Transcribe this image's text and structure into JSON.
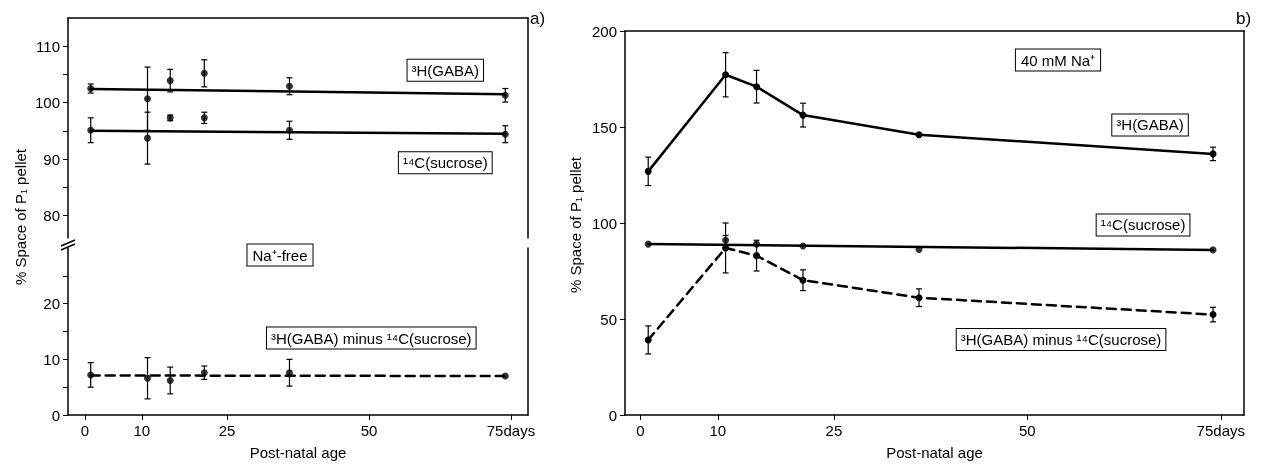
{
  "chart_data": [
    {
      "type": "scatter",
      "title": "a)",
      "ylabel": "% Space of P₁ pellet",
      "xlim": [
        -3,
        78
      ],
      "ylim": [
        76,
        115
      ],
      "yticks": [
        {
          "value": 80,
          "label": "80"
        },
        {
          "value": 85,
          "label": null
        },
        90,
        {
          "value": 95,
          "label": null
        },
        100,
        {
          "value": 105,
          "label": null
        },
        110
      ],
      "tick_labels": "y",
      "series": [
        {
          "x": [
            1,
            11,
            15,
            21,
            36,
            74
          ],
          "values": [
            102.5,
            100.7,
            103.9,
            105.2,
            102.9,
            101.3
          ],
          "errors": [
            0.8,
            5.6,
            2,
            2.4,
            1.5,
            1.2
          ],
          "color": "#000000",
          "marker": "circle"
        },
        {
          "type": "line",
          "name": "³H(GABA)",
          "x": [
            1,
            74
          ],
          "values": [
            102.4,
            101.5
          ],
          "color": "#000000",
          "line_style": "solid",
          "marker": "none"
        },
        {
          "x": [
            1,
            11,
            15,
            21,
            36,
            74
          ],
          "values": [
            95.1,
            93.7,
            97.3,
            97.3,
            95.1,
            94.4
          ],
          "errors": [
            2.2,
            4.6,
            0.5,
            1,
            1.6,
            1.5
          ],
          "color": "#000000",
          "marker": "circle"
        },
        {
          "type": "line",
          "name": "¹⁴C(sucrose)",
          "x": [
            1,
            74
          ],
          "values": [
            95,
            94.5
          ],
          "color": "#000000",
          "line_style": "solid",
          "marker": "none"
        }
      ]
    },
    {
      "type": "scatter",
      "xlabel": "Post-natal age",
      "xlim": [
        -3,
        78
      ],
      "xticks": [
        0,
        10,
        25,
        50,
        {
          "value": 75,
          "label": "75days"
        }
      ],
      "ylim": [
        0,
        30
      ],
      "yticks": [
        0,
        {
          "value": 5,
          "label": null
        },
        10,
        {
          "value": 15,
          "label": null
        },
        20,
        {
          "value": 25,
          "label": null
        }
      ],
      "annotations": [
        "Na⁺-free"
      ],
      "series": [
        {
          "x": [
            1,
            11,
            15,
            21,
            36,
            74
          ],
          "values": [
            7.2,
            6.6,
            6.2,
            7.6,
            7.6,
            7.0
          ],
          "errors": [
            2.2,
            3.7,
            2.4,
            1.2,
            2.4,
            null
          ],
          "color": "#000000",
          "marker": "circle"
        },
        {
          "type": "line",
          "name": "³H(GABA) minus ¹⁴C(sucrose)",
          "x": [
            1,
            74
          ],
          "values": [
            7.1,
            7.0
          ],
          "color": "#000000",
          "line_style": "dashed",
          "marker": "none"
        }
      ]
    },
    {
      "type": "line",
      "title": "b)",
      "ylabel": "% Space of P₁ pellet",
      "xlabel": "Post-natal age",
      "xlim": [
        -2,
        78
      ],
      "xticks": [
        0,
        10,
        25,
        50,
        {
          "value": 75,
          "label": "75days"
        }
      ],
      "ylim": [
        0,
        200
      ],
      "yticks": [
        0,
        50,
        100,
        150,
        200
      ],
      "annotations": [
        "40 mM Na⁺"
      ],
      "series": [
        {
          "name": "³H(GABA)",
          "x": [
            1,
            11,
            15,
            21,
            36,
            74
          ],
          "values": [
            126.9,
            177.2,
            171,
            156.2,
            146,
            136
          ],
          "errors": [
            7.4,
            11.5,
            8.5,
            6.2,
            null,
            3.5
          ],
          "color": "#000000",
          "line_style": "solid",
          "marker": "circle"
        },
        {
          "type": "scatter",
          "x": [
            1,
            11,
            15,
            21,
            36,
            74
          ],
          "values": [
            89,
            91,
            89,
            88,
            86.2,
            86
          ],
          "errors": [
            null,
            2.5,
            null,
            null,
            null,
            null
          ],
          "color": "#000000",
          "marker": "circle"
        },
        {
          "type": "line",
          "name": "¹⁴C(sucrose)",
          "x": [
            1,
            74
          ],
          "values": [
            89,
            86
          ],
          "color": "#000000",
          "line_style": "solid",
          "marker": "none"
        },
        {
          "name": "³H(GABA) minus ¹⁴C(sucrose)",
          "x": [
            1,
            11,
            15,
            21,
            36,
            74
          ],
          "values": [
            39.1,
            87,
            83,
            70.2,
            61.1,
            52.3
          ],
          "errors": [
            7.3,
            13,
            8,
            5.4,
            4.6,
            3.8
          ],
          "color": "#000000",
          "line_style": "dashed",
          "marker": "circle"
        }
      ]
    }
  ]
}
